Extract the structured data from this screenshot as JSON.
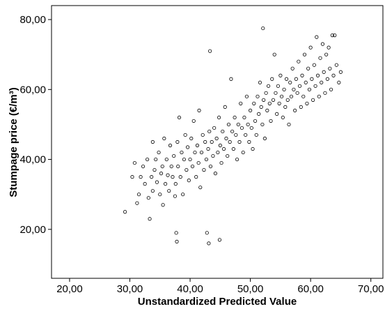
{
  "chart_data": {
    "type": "scatter",
    "title": "",
    "xlabel": "Unstandardized Predicted Value",
    "ylabel": "Stumpage price (€/m³)",
    "xlim": [
      17,
      72
    ],
    "ylim": [
      6,
      84
    ],
    "grid": false,
    "legend": "none",
    "marker": "open-circle",
    "marker_color": "#000000",
    "x_ticks": [
      {
        "value": 20,
        "label": "20,00"
      },
      {
        "value": 30,
        "label": "30,00"
      },
      {
        "value": 40,
        "label": "40,00"
      },
      {
        "value": 50,
        "label": "50,00"
      },
      {
        "value": 60,
        "label": "60,00"
      },
      {
        "value": 70,
        "label": "70,00"
      }
    ],
    "y_ticks": [
      {
        "value": 20,
        "label": "20,00"
      },
      {
        "value": 40,
        "label": "40,00"
      },
      {
        "value": 60,
        "label": "60,00"
      },
      {
        "value": 80,
        "label": "80,00"
      }
    ],
    "points": [
      [
        29.2,
        25.0
      ],
      [
        30.4,
        35.0
      ],
      [
        30.8,
        39.0
      ],
      [
        31.2,
        27.5
      ],
      [
        31.5,
        30.0
      ],
      [
        31.8,
        35.0
      ],
      [
        32.2,
        38.0
      ],
      [
        32.5,
        33.0
      ],
      [
        32.9,
        40.0
      ],
      [
        33.1,
        29.0
      ],
      [
        33.3,
        23.0
      ],
      [
        33.6,
        35.0
      ],
      [
        33.8,
        31.0
      ],
      [
        33.8,
        45.0
      ],
      [
        34.1,
        37.0
      ],
      [
        34.3,
        40.0
      ],
      [
        34.5,
        33.5
      ],
      [
        34.8,
        42.0
      ],
      [
        35.0,
        30.0
      ],
      [
        35.2,
        36.0
      ],
      [
        35.4,
        38.0
      ],
      [
        35.5,
        27.0
      ],
      [
        35.7,
        46.0
      ],
      [
        35.9,
        33.0
      ],
      [
        36.1,
        40.0
      ],
      [
        36.3,
        35.5
      ],
      [
        36.5,
        31.0
      ],
      [
        36.7,
        44.0
      ],
      [
        36.9,
        38.0
      ],
      [
        37.1,
        35.0
      ],
      [
        37.3,
        41.0
      ],
      [
        37.5,
        29.5
      ],
      [
        37.6,
        33.0
      ],
      [
        37.7,
        19.0
      ],
      [
        37.8,
        16.5
      ],
      [
        37.9,
        45.0
      ],
      [
        38.0,
        38.0
      ],
      [
        38.2,
        52.0
      ],
      [
        38.4,
        35.0
      ],
      [
        38.6,
        42.0
      ],
      [
        38.8,
        30.0
      ],
      [
        39.0,
        40.0
      ],
      [
        39.2,
        47.0
      ],
      [
        39.4,
        37.0
      ],
      [
        39.6,
        43.5
      ],
      [
        39.8,
        34.0
      ],
      [
        40.0,
        40.0
      ],
      [
        40.2,
        46.0
      ],
      [
        40.4,
        38.0
      ],
      [
        40.6,
        51.0
      ],
      [
        40.8,
        42.0
      ],
      [
        41.0,
        35.0
      ],
      [
        41.2,
        44.0
      ],
      [
        41.4,
        39.0
      ],
      [
        41.5,
        54.0
      ],
      [
        41.7,
        32.0
      ],
      [
        41.9,
        42.0
      ],
      [
        42.1,
        47.0
      ],
      [
        42.3,
        37.0
      ],
      [
        42.5,
        45.0
      ],
      [
        42.7,
        40.0
      ],
      [
        42.8,
        19.0
      ],
      [
        43.0,
        43.0
      ],
      [
        43.1,
        16.0
      ],
      [
        43.2,
        48.0
      ],
      [
        43.3,
        71.0
      ],
      [
        43.4,
        38.0
      ],
      [
        43.6,
        45.0
      ],
      [
        43.8,
        41.0
      ],
      [
        44.0,
        49.0
      ],
      [
        44.2,
        36.0
      ],
      [
        44.4,
        46.0
      ],
      [
        44.6,
        42.0
      ],
      [
        44.8,
        52.0
      ],
      [
        44.9,
        17.0
      ],
      [
        45.0,
        44.0
      ],
      [
        45.2,
        39.0
      ],
      [
        45.4,
        48.0
      ],
      [
        45.6,
        43.0
      ],
      [
        45.8,
        55.0
      ],
      [
        46.0,
        46.0
      ],
      [
        46.2,
        41.0
      ],
      [
        46.4,
        50.0
      ],
      [
        46.6,
        45.0
      ],
      [
        46.8,
        63.0
      ],
      [
        47.0,
        48.0
      ],
      [
        47.2,
        43.0
      ],
      [
        47.4,
        52.0
      ],
      [
        47.6,
        47.0
      ],
      [
        47.8,
        40.0
      ],
      [
        48.0,
        50.0
      ],
      [
        48.2,
        45.0
      ],
      [
        48.4,
        56.0
      ],
      [
        48.6,
        49.0
      ],
      [
        48.8,
        42.0
      ],
      [
        49.0,
        52.0
      ],
      [
        49.2,
        47.0
      ],
      [
        49.4,
        58.0
      ],
      [
        49.6,
        50.0
      ],
      [
        49.8,
        45.0
      ],
      [
        50.0,
        54.0
      ],
      [
        50.2,
        49.0
      ],
      [
        50.4,
        43.0
      ],
      [
        50.6,
        56.0
      ],
      [
        50.8,
        51.0
      ],
      [
        51.0,
        47.0
      ],
      [
        51.2,
        58.0
      ],
      [
        51.4,
        53.0
      ],
      [
        51.6,
        62.0
      ],
      [
        51.8,
        55.0
      ],
      [
        52.0,
        50.0
      ],
      [
        52.1,
        77.5
      ],
      [
        52.2,
        57.0
      ],
      [
        52.4,
        46.0
      ],
      [
        52.6,
        59.0
      ],
      [
        52.8,
        54.0
      ],
      [
        53.0,
        61.0
      ],
      [
        53.2,
        56.0
      ],
      [
        53.4,
        51.0
      ],
      [
        53.6,
        63.0
      ],
      [
        53.8,
        57.0
      ],
      [
        54.0,
        70.0
      ],
      [
        54.2,
        59.0
      ],
      [
        54.4,
        53.0
      ],
      [
        54.6,
        61.0
      ],
      [
        54.8,
        56.0
      ],
      [
        55.0,
        64.0
      ],
      [
        55.2,
        58.0
      ],
      [
        55.4,
        52.0
      ],
      [
        55.6,
        60.0
      ],
      [
        55.8,
        55.0
      ],
      [
        56.0,
        63.0
      ],
      [
        56.2,
        57.0
      ],
      [
        56.4,
        50.0
      ],
      [
        56.6,
        62.0
      ],
      [
        56.8,
        58.0
      ],
      [
        57.0,
        66.0
      ],
      [
        57.2,
        60.0
      ],
      [
        57.4,
        54.0
      ],
      [
        57.6,
        63.0
      ],
      [
        57.8,
        59.0
      ],
      [
        58.0,
        68.0
      ],
      [
        58.2,
        61.0
      ],
      [
        58.4,
        55.0
      ],
      [
        58.6,
        64.0
      ],
      [
        58.8,
        58.0
      ],
      [
        59.0,
        70.0
      ],
      [
        59.2,
        62.0
      ],
      [
        59.4,
        56.0
      ],
      [
        59.6,
        66.0
      ],
      [
        59.8,
        60.0
      ],
      [
        60.0,
        72.0
      ],
      [
        60.2,
        63.0
      ],
      [
        60.4,
        57.0
      ],
      [
        60.6,
        67.0
      ],
      [
        60.8,
        61.0
      ],
      [
        61.0,
        75.0
      ],
      [
        61.2,
        64.0
      ],
      [
        61.4,
        58.0
      ],
      [
        61.6,
        69.0
      ],
      [
        61.8,
        62.0
      ],
      [
        62.0,
        73.0
      ],
      [
        62.2,
        65.0
      ],
      [
        62.4,
        59.0
      ],
      [
        62.6,
        70.0
      ],
      [
        62.8,
        63.0
      ],
      [
        63.0,
        72.0
      ],
      [
        63.2,
        66.0
      ],
      [
        63.4,
        60.0
      ],
      [
        63.6,
        75.5
      ],
      [
        63.8,
        64.0
      ],
      [
        64.0,
        75.5
      ],
      [
        64.3,
        67.0
      ],
      [
        64.7,
        62.0
      ],
      [
        65.0,
        65.0
      ]
    ]
  }
}
